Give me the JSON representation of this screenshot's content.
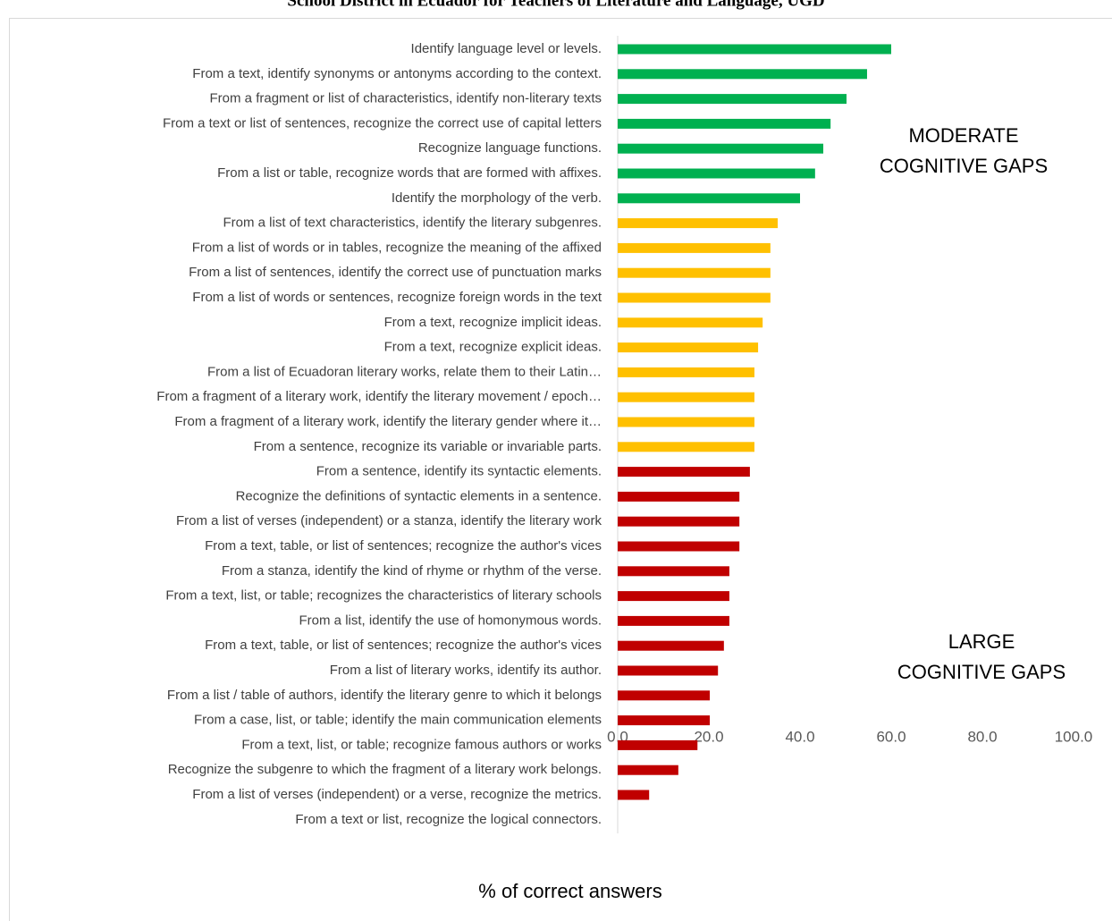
{
  "chart_data": {
    "type": "bar",
    "orientation": "horizontal",
    "title": "School District in Ecuador for Teachers of Literature and Language, UGD",
    "x_label": "% of correct answers",
    "annotations": [
      [
        "MODERATE",
        "COGNITIVE GAPS"
      ],
      [
        "LARGE",
        "COGNITIVE GAPS"
      ]
    ],
    "categories": [
      "Identify language level or levels.",
      "From a text, identify synonyms or antonyms according to the context.",
      "From a fragment or list of characteristics, identify non-literary texts",
      "From a text or list of sentences, recognize the correct use of capital letters",
      "Recognize language functions.",
      "From a list or table, recognize words that are formed with affixes.",
      "Identify the morphology of the verb.",
      "From a list of text characteristics, identify the literary subgenres.",
      "From a list of words or in tables, recognize the meaning of the affixed",
      "From a list of sentences, identify the correct use of punctuation marks",
      "From a list of words or sentences, recognize foreign words in the text",
      "From a text, recognize implicit ideas.",
      "From a text, recognize explicit ideas.",
      "From a list of Ecuadoran literary works, relate them to their Latin…",
      "From a fragment of a literary work, identify the literary movement / epoch…",
      "From a fragment of a literary work, identify the literary gender where it…",
      "From a sentence, recognize its variable or invariable parts.",
      "From a sentence, identify its syntactic elements.",
      "Recognize the definitions of syntactic elements in a sentence.",
      "From a list of verses (independent) or a stanza, identify the literary work",
      "From a text, table, or list of sentences; recognize the author's vices",
      "From a stanza, identify the kind of rhyme or rhythm of the verse.",
      "From a text, list, or table; recognizes the characteristics of literary schools",
      "From a list, identify the use of homonymous words.",
      "From a text, table, or list of sentences; recognize the author's vices",
      "From a list of literary works, identify its author.",
      "From a list / table of authors, identify the literary genre to which it belongs",
      "From a case, list, or table; identify the main communication elements",
      "From a text, list, or table; recognize famous authors or works",
      "Recognize the subgenre to which the fragment of a literary work belongs.",
      "From a list of verses (independent) or a verse, recognize the metrics.",
      "From a text or list, recognize the logical connectors."
    ],
    "values": [
      60.0,
      54.7,
      50.2,
      46.7,
      45.1,
      43.3,
      40.0,
      35.1,
      33.5,
      33.5,
      33.5,
      31.8,
      30.8,
      30.0,
      30.0,
      30.0,
      30.0,
      29.0,
      26.7,
      26.7,
      26.7,
      24.5,
      24.5,
      24.5,
      23.3,
      22.0,
      20.2,
      20.2,
      17.5,
      13.3,
      6.9,
      0
    ],
    "colors": [
      "#00b050",
      "#00b050",
      "#00b050",
      "#00b050",
      "#00b050",
      "#00b050",
      "#00b050",
      "#ffc000",
      "#ffc000",
      "#ffc000",
      "#ffc000",
      "#ffc000",
      "#ffc000",
      "#ffc000",
      "#ffc000",
      "#ffc000",
      "#ffc000",
      "#c00000",
      "#c00000",
      "#c00000",
      "#c00000",
      "#c00000",
      "#c00000",
      "#c00000",
      "#c00000",
      "#c00000",
      "#c00000",
      "#c00000",
      "#c00000",
      "#c00000",
      "#c00000",
      "#c00000"
    ],
    "xlim": [
      0,
      100
    ],
    "xticks": [
      {
        "value": 0,
        "label": "0.0"
      },
      {
        "value": 20,
        "label": "20.0"
      },
      {
        "value": 40,
        "label": "40.0"
      },
      {
        "value": 60,
        "label": "60.0"
      },
      {
        "value": 80,
        "label": "80.0"
      },
      {
        "value": 100,
        "label": "100.0"
      }
    ],
    "grid": false
  }
}
